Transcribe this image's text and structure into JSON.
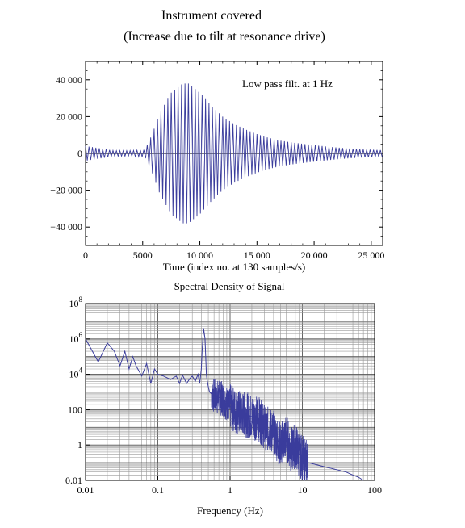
{
  "figure": {
    "title_line1": "Instrument covered",
    "title_line2": "(Increase due to tilt at resonance drive)"
  },
  "chart_data": [
    {
      "type": "line",
      "title": "",
      "xlabel": "Time  (index no. at 130 samples/s)",
      "ylabel": "",
      "annotation": "Low pass filt. at 1 Hz",
      "xlim": [
        0,
        26000
      ],
      "ylim": [
        -50000,
        50000
      ],
      "x_ticks": [
        {
          "value": 0,
          "label": "0"
        },
        {
          "value": 5000,
          "label": "5000"
        },
        {
          "value": 10000,
          "label": "10 000"
        },
        {
          "value": 15000,
          "label": "15 000"
        },
        {
          "value": 20000,
          "label": "20 000"
        },
        {
          "value": 25000,
          "label": "25 000"
        }
      ],
      "y_ticks": [
        {
          "value": 40000,
          "label": "40 000"
        },
        {
          "value": 20000,
          "label": "20 000"
        },
        {
          "value": 0,
          "label": "0"
        },
        {
          "value": -20000,
          "label": "−20 000"
        },
        {
          "value": -40000,
          "label": "−40 000"
        }
      ],
      "zero_line": true,
      "envelope": {
        "x": [
          0,
          1000,
          1500,
          2500,
          4000,
          5200,
          5800,
          6500,
          7500,
          8500,
          9000,
          10000,
          11000,
          12000,
          13000,
          14000,
          15000,
          16000,
          17000,
          18000,
          19000,
          20000,
          21000,
          22000,
          23000,
          24000,
          25000,
          26000
        ],
        "amplitude": [
          4000,
          3000,
          2500,
          1500,
          1500,
          2000,
          10000,
          22000,
          33000,
          38000,
          38000,
          33000,
          26000,
          20000,
          16000,
          13000,
          10500,
          8500,
          7000,
          6000,
          5200,
          4500,
          3800,
          3200,
          2700,
          2300,
          2000,
          1800
        ]
      },
      "oscillation_period": 300,
      "series": [
        {
          "name": "",
          "color": "#3a3c9c"
        }
      ]
    },
    {
      "type": "line",
      "title": "Spectral Density of Signal",
      "xlabel": "Frequency (Hz)",
      "ylabel": "",
      "x_scale": "log",
      "y_scale": "log",
      "xlim": [
        0.01,
        100
      ],
      "ylim": [
        0.01,
        100000000
      ],
      "grid": true,
      "x_ticks": [
        {
          "value": 0.01,
          "label": "0.01"
        },
        {
          "value": 0.1,
          "label": "0.1"
        },
        {
          "value": 1,
          "label": "1"
        },
        {
          "value": 10,
          "label": "10"
        },
        {
          "value": 100,
          "label": "100"
        }
      ],
      "y_ticks": [
        {
          "value": 100000000,
          "base": "10",
          "exp": "8"
        },
        {
          "value": 1000000,
          "base": "10",
          "exp": "6"
        },
        {
          "value": 10000,
          "base": "10",
          "exp": "4"
        },
        {
          "value": 100,
          "base": "100",
          "exp": ""
        },
        {
          "value": 1,
          "base": "1",
          "exp": ""
        },
        {
          "value": 0.01,
          "base": "0.01",
          "exp": ""
        }
      ],
      "series": [
        {
          "name": "",
          "color": "#3a3c9c",
          "x": [
            0.01,
            0.015,
            0.02,
            0.025,
            0.03,
            0.035,
            0.04,
            0.045,
            0.05,
            0.06,
            0.07,
            0.08,
            0.09,
            0.1,
            0.12,
            0.15,
            0.18,
            0.2,
            0.22,
            0.25,
            0.28,
            0.3,
            0.33,
            0.36,
            0.38,
            0.4,
            0.41,
            0.42,
            0.43,
            0.44,
            0.45,
            0.46,
            0.47,
            0.48,
            0.5,
            0.52,
            0.55,
            0.6,
            0.7,
            0.8,
            1,
            1.2,
            1.5,
            2,
            2.5,
            3,
            4,
            5,
            6,
            7,
            8,
            9,
            10,
            12,
            15,
            20,
            30,
            40,
            50,
            60,
            70
          ],
          "y": [
            1000000,
            50000,
            600000,
            200000,
            30000,
            200000,
            20000,
            100000,
            30000,
            8000,
            40000,
            3000,
            20000,
            10000,
            8000,
            5000,
            8000,
            3000,
            9000,
            3000,
            6000,
            8000,
            4000,
            10000,
            3000,
            20000,
            200000,
            1000000,
            4000000,
            2000000,
            1000000,
            100000,
            10000,
            5000,
            2000,
            1000,
            800,
            600,
            500,
            400,
            150,
            80,
            60,
            40,
            30,
            10,
            5,
            1,
            3,
            0.5,
            1,
            0.3,
            0.2,
            0.1,
            0.08,
            0.06,
            0.04,
            0.03,
            0.02,
            0.015,
            0.01
          ]
        }
      ]
    }
  ]
}
